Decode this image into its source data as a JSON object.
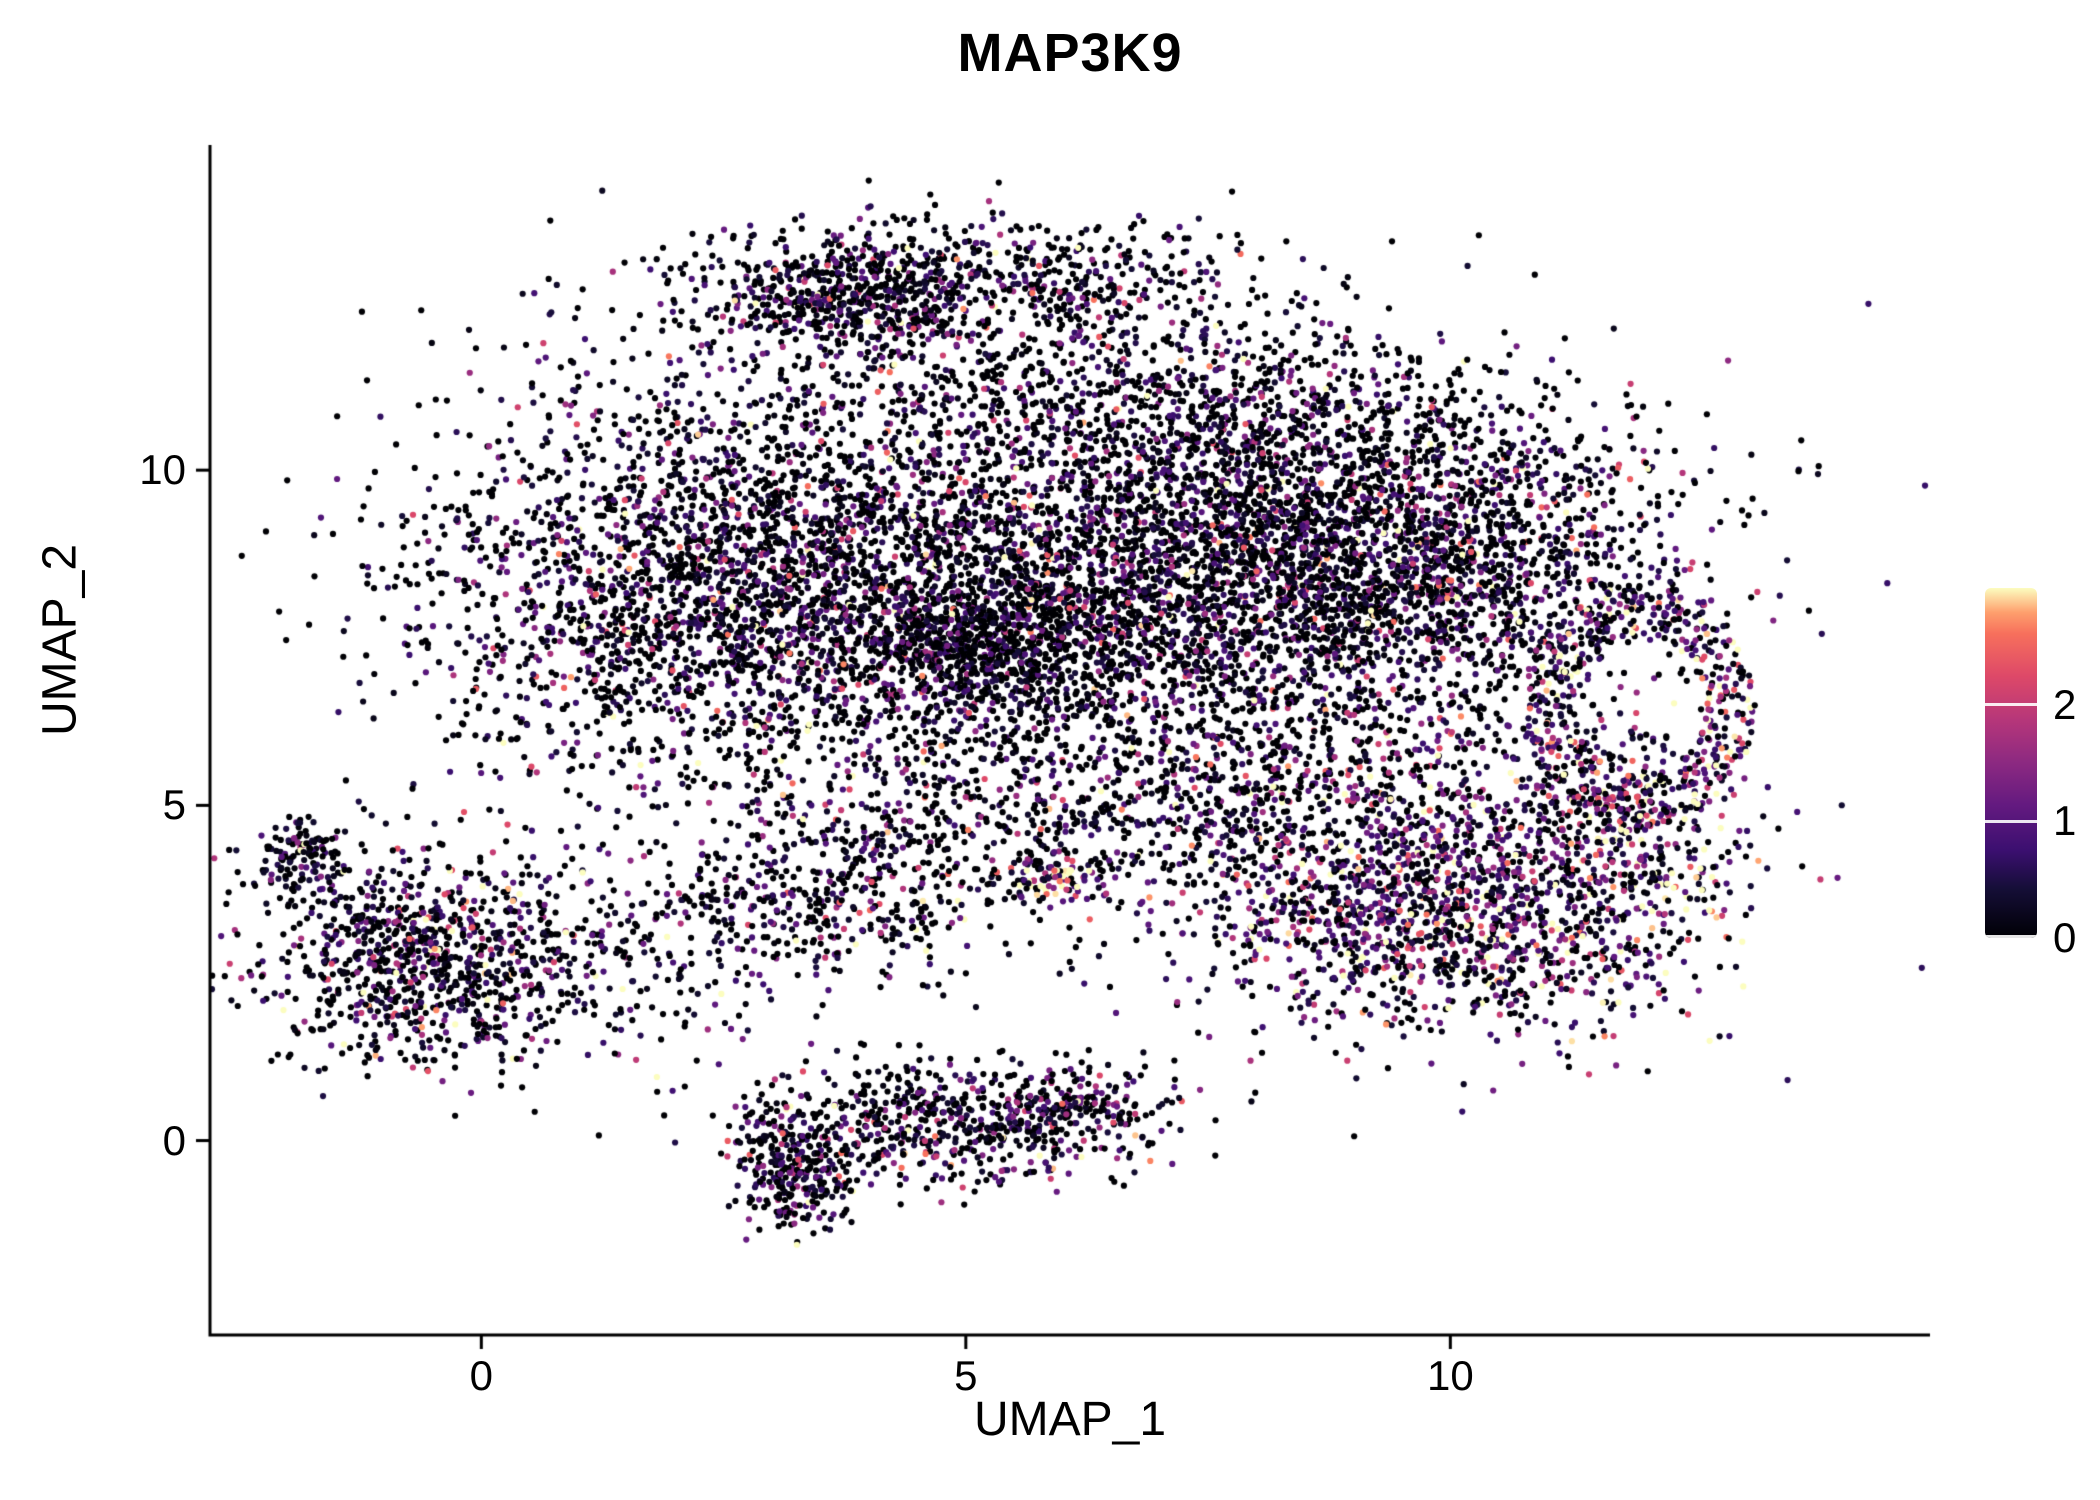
{
  "chart_data": {
    "type": "scatter",
    "title": "MAP3K9",
    "xlabel": "UMAP_1",
    "ylabel": "UMAP_2",
    "xlim": [
      -2.8,
      14.95
    ],
    "ylim": [
      -2.9,
      14.85
    ],
    "x_ticks": [
      0,
      5,
      10
    ],
    "y_ticks": [
      0,
      5,
      10
    ],
    "grid": false,
    "legend_position": "right",
    "point_radius_px": 3.1,
    "seed": 1337,
    "colorbar": {
      "ticks": [
        0,
        1,
        2
      ],
      "vmin": 0,
      "vmax": 3,
      "colormap": "magma",
      "stops": [
        {
          "t": 0.0,
          "color": "#000004"
        },
        {
          "t": 0.14,
          "color": "#150e37"
        },
        {
          "t": 0.25,
          "color": "#3b0f70"
        },
        {
          "t": 0.38,
          "color": "#641a80"
        },
        {
          "t": 0.5,
          "color": "#8c2981"
        },
        {
          "t": 0.62,
          "color": "#b5367a"
        },
        {
          "t": 0.75,
          "color": "#de4968"
        },
        {
          "t": 0.87,
          "color": "#f7705c"
        },
        {
          "t": 0.93,
          "color": "#fe9f6d"
        },
        {
          "t": 1.0,
          "color": "#fcfdbf"
        }
      ]
    },
    "clusters": [
      {
        "name": "top-arc",
        "type": "gauss",
        "cx": 5.0,
        "cy": 12.85,
        "sx": 1.5,
        "sy": 0.45,
        "n": 650,
        "p0": 0.45,
        "mean": 0.75
      },
      {
        "name": "top-arc-dense",
        "type": "gauss",
        "cx": 3.7,
        "cy": 12.55,
        "sx": 0.65,
        "sy": 0.4,
        "n": 350,
        "p0": 0.45,
        "mean": 0.75
      },
      {
        "name": "upper-mid",
        "type": "gauss",
        "cx": 5.5,
        "cy": 11.3,
        "sx": 1.5,
        "sy": 0.7,
        "n": 420,
        "p0": 0.5,
        "mean": 0.7
      },
      {
        "name": "upper-right",
        "type": "gauss",
        "cx": 8.3,
        "cy": 10.8,
        "sx": 1.3,
        "sy": 0.75,
        "n": 430,
        "p0": 0.5,
        "mean": 0.7
      },
      {
        "name": "main-left",
        "type": "gauss",
        "cx": 2.3,
        "cy": 8.2,
        "sx": 1.5,
        "sy": 1.5,
        "n": 2300,
        "p0": 0.45,
        "mean": 0.8
      },
      {
        "name": "main-center",
        "type": "gauss",
        "cx": 5.5,
        "cy": 8.3,
        "sx": 1.8,
        "sy": 1.6,
        "n": 2300,
        "p0": 0.48,
        "mean": 0.75
      },
      {
        "name": "dark-patch",
        "type": "gauss",
        "cx": 5.2,
        "cy": 7.4,
        "sx": 0.8,
        "sy": 0.6,
        "n": 700,
        "p0": 0.55,
        "mean": 0.6
      },
      {
        "name": "main-right-dense",
        "type": "gauss",
        "cx": 8.3,
        "cy": 8.6,
        "sx": 1.4,
        "sy": 1.2,
        "n": 2100,
        "p0": 0.5,
        "mean": 0.75
      },
      {
        "name": "right-mid",
        "type": "gauss",
        "cx": 10.3,
        "cy": 8.9,
        "sx": 1.1,
        "sy": 1.1,
        "n": 950,
        "p0": 0.45,
        "mean": 0.85
      },
      {
        "name": "right-ring",
        "type": "ring",
        "cx": 11.95,
        "cy": 6.5,
        "rx": 0.75,
        "ry": 1.15,
        "r0": 0.9,
        "r1": 1.6,
        "n": 520,
        "p0": 0.18,
        "mean": 1.3
      },
      {
        "name": "right-lower-hot",
        "type": "gauss",
        "cx": 9.9,
        "cy": 3.4,
        "sx": 1.4,
        "sy": 0.95,
        "n": 1600,
        "p0": 0.25,
        "mean": 1.15
      },
      {
        "name": "right-lower-edge",
        "type": "gauss",
        "cx": 11.55,
        "cy": 4.6,
        "sx": 0.7,
        "sy": 0.8,
        "n": 350,
        "p0": 0.2,
        "mean": 1.3
      },
      {
        "name": "between-band",
        "type": "gauss",
        "cx": 8.8,
        "cy": 5.6,
        "sx": 1.2,
        "sy": 0.8,
        "n": 500,
        "p0": 0.4,
        "mean": 0.9
      },
      {
        "name": "mid-band",
        "type": "gauss",
        "cx": 5.6,
        "cy": 4.6,
        "sx": 1.7,
        "sy": 0.7,
        "n": 600,
        "p0": 0.45,
        "mean": 0.8
      },
      {
        "name": "mid-band-hot",
        "type": "gauss",
        "cx": 5.9,
        "cy": 3.9,
        "sx": 0.25,
        "sy": 0.2,
        "n": 70,
        "p0": 0.1,
        "mean": 1.8
      },
      {
        "name": "left-strip",
        "type": "gauss",
        "cx": 3.3,
        "cy": 3.4,
        "sx": 0.9,
        "sy": 0.5,
        "n": 330,
        "p0": 0.45,
        "mean": 0.8
      },
      {
        "name": "left-cluster",
        "type": "gauss",
        "cx": -0.55,
        "cy": 2.7,
        "sx": 0.85,
        "sy": 0.8,
        "n": 950,
        "p0": 0.38,
        "mean": 0.9
      },
      {
        "name": "left-tail",
        "type": "gauss",
        "cx": -1.85,
        "cy": 4.25,
        "sx": 0.2,
        "sy": 0.35,
        "n": 130,
        "p0": 0.35,
        "mean": 0.9
      },
      {
        "name": "left-low-sparse",
        "type": "gauss",
        "cx": 1.5,
        "cy": 2.6,
        "sx": 0.8,
        "sy": 0.7,
        "n": 140,
        "p0": 0.5,
        "mean": 0.7
      },
      {
        "name": "bottom-main",
        "type": "gauss",
        "cx": 4.8,
        "cy": 0.25,
        "sx": 1.1,
        "sy": 0.5,
        "n": 600,
        "p0": 0.45,
        "mean": 0.8
      },
      {
        "name": "bottom-dense",
        "type": "gauss",
        "cx": 3.25,
        "cy": -0.5,
        "sx": 0.3,
        "sy": 0.45,
        "n": 280,
        "p0": 0.45,
        "mean": 0.8
      },
      {
        "name": "bottom-right-bit",
        "type": "gauss",
        "cx": 6.1,
        "cy": 0.45,
        "sx": 0.45,
        "sy": 0.35,
        "n": 150,
        "p0": 0.45,
        "mean": 0.8
      },
      {
        "name": "broad-sparse",
        "type": "gauss",
        "cx": 6.5,
        "cy": 8.3,
        "sx": 3.4,
        "sy": 2.4,
        "n": 450,
        "p0": 0.5,
        "mean": 0.7
      }
    ]
  }
}
